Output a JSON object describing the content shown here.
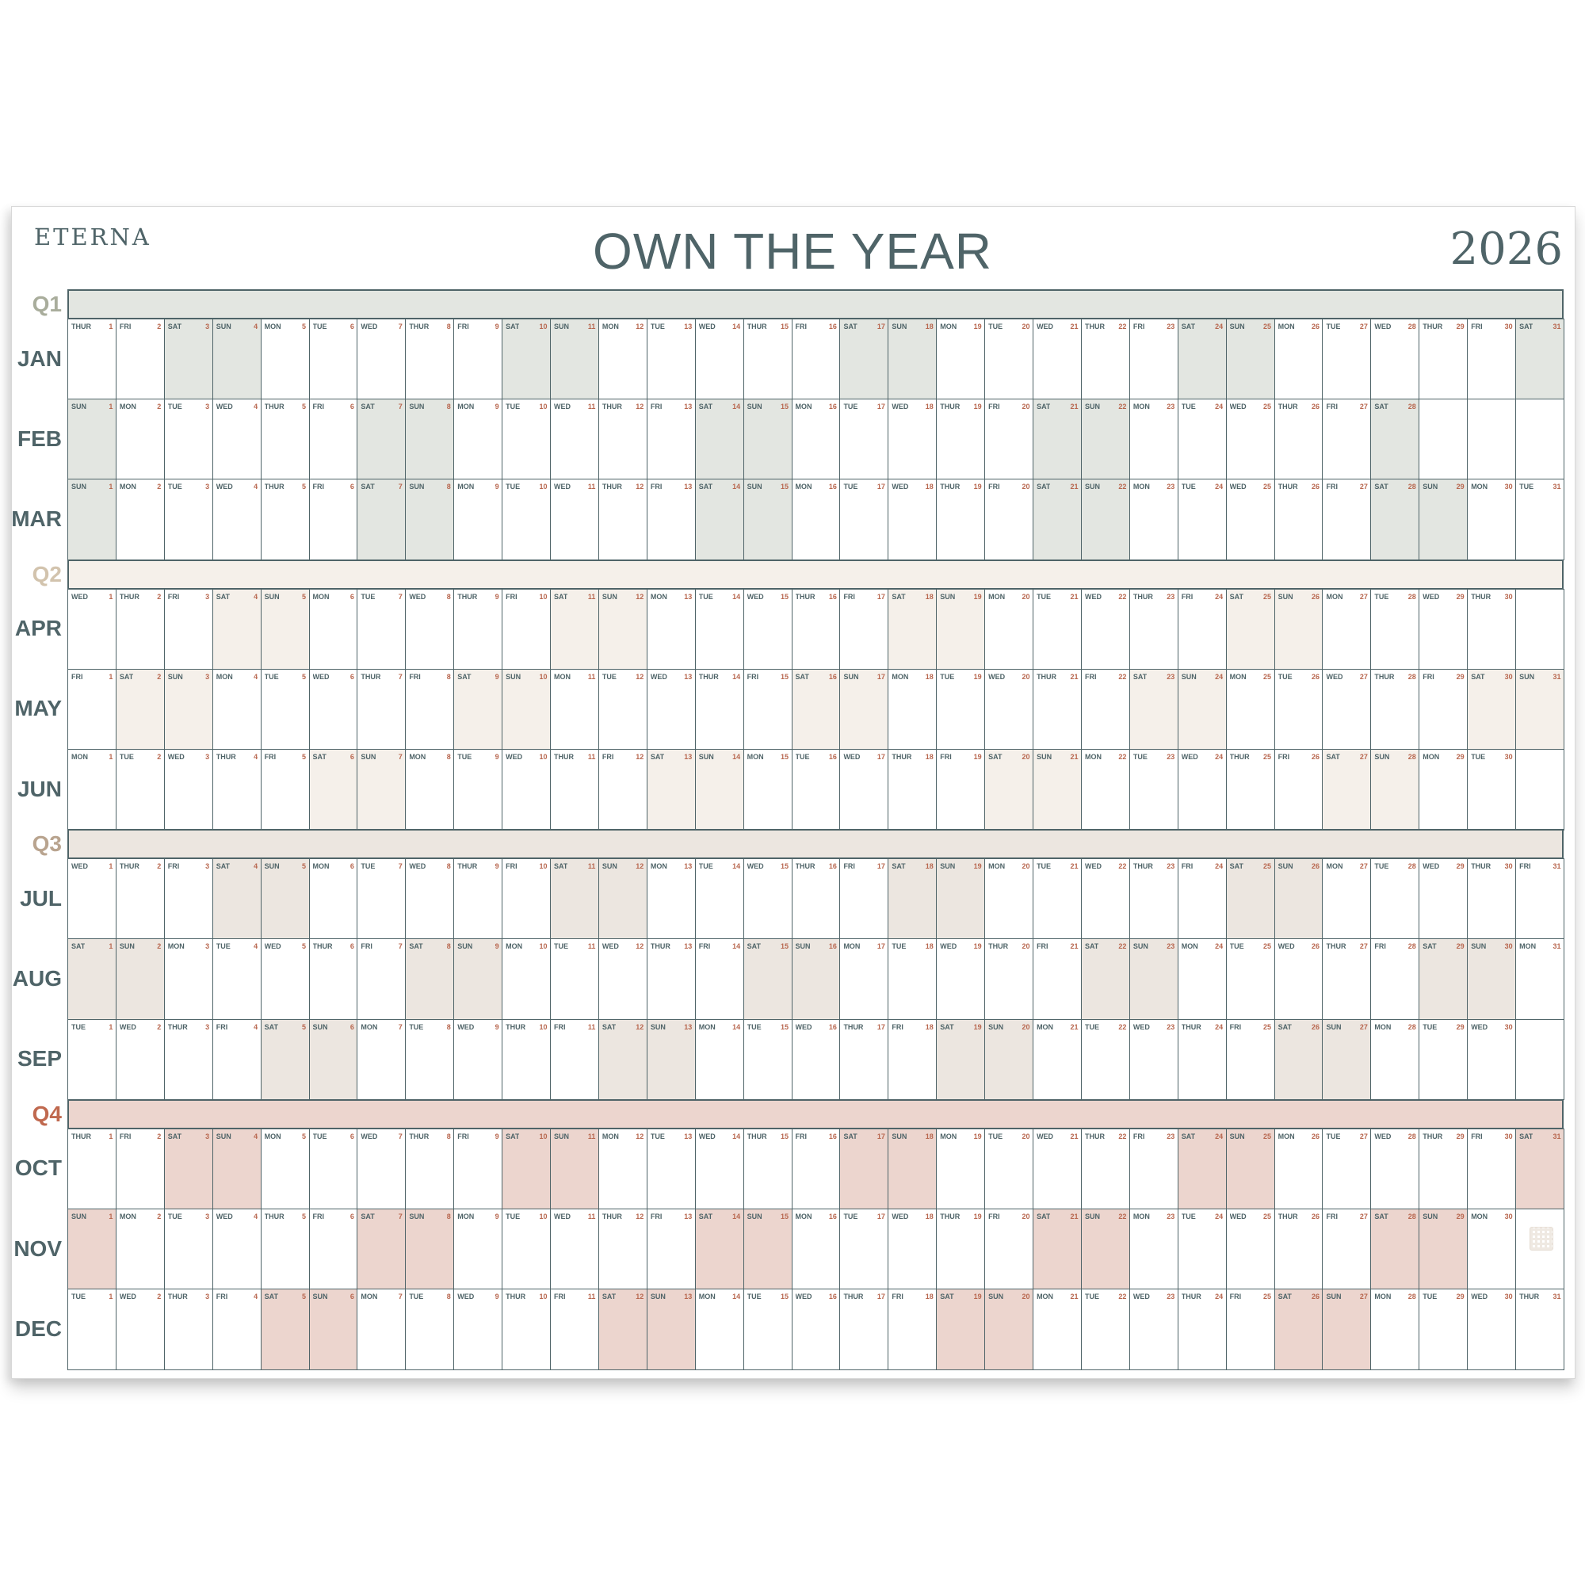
{
  "brand": "ETERNA",
  "title": "OWN THE YEAR",
  "year": "2026",
  "weekday_labels": [
    "SUN",
    "MON",
    "TUE",
    "WED",
    "THUR",
    "FRI",
    "SAT"
  ],
  "colors": {
    "ink": "#4f6468",
    "date_number": "#b8674f"
  },
  "quarters": [
    {
      "label": "Q1",
      "label_color": "#a9ad9c",
      "fill": "#e3e6e1",
      "months": [
        "JAN",
        "FEB",
        "MAR"
      ]
    },
    {
      "label": "Q2",
      "label_color": "#d2c3ad",
      "fill": "#f5f0ea",
      "months": [
        "APR",
        "MAY",
        "JUN"
      ]
    },
    {
      "label": "Q3",
      "label_color": "#b9a48f",
      "fill": "#ece6e0",
      "months": [
        "JUL",
        "AUG",
        "SEP"
      ]
    },
    {
      "label": "Q4",
      "label_color": "#c0694f",
      "fill": "#ecd5ce",
      "months": [
        "OCT",
        "NOV",
        "DEC"
      ]
    }
  ],
  "qr_icon": "qr-code-icon"
}
